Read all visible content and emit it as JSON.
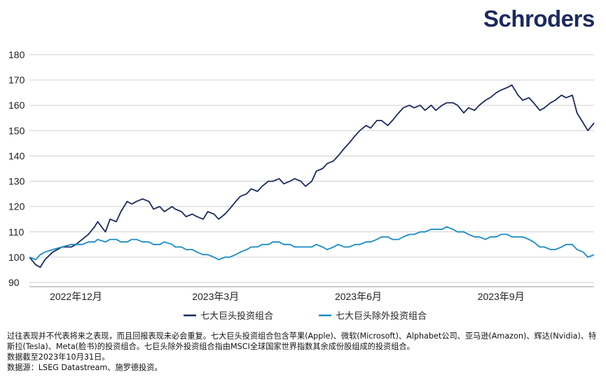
{
  "brand": {
    "logo_text": "Schroders",
    "color": "#1b2a5e"
  },
  "footnotes": {
    "line1": "过往表现并不代表将来之表现，而且回报表现未必会重复。七大巨头投资组合包含苹果(Apple)、微软(Microsoft)、Alphabet公司、亚马逊(Amazon)、辉达(Nvidia)、特斯拉(Tesla)、Meta(脸书)的投资组合。七巨头除外投资组合指由MSCI全球国家世界指数其余成份股组成的投资组合。",
    "line2": "数据截至2023年10月31日。",
    "line3": "数据源：LSEG Datastream、施罗德投资。"
  },
  "chart_data": {
    "type": "line",
    "title": "",
    "xlabel": "",
    "ylabel": "",
    "ylim": [
      90,
      180
    ],
    "yticks": [
      90,
      100,
      110,
      120,
      130,
      140,
      150,
      160,
      170,
      180
    ],
    "x_start": "2022-11-01",
    "x_end": "2023-10-31",
    "xticks": [
      {
        "date": "2022-12-01",
        "label": "2022年12月"
      },
      {
        "date": "2023-03-01",
        "label": "2023年3月"
      },
      {
        "date": "2023-06-01",
        "label": "2023年6月"
      },
      {
        "date": "2023-09-01",
        "label": "2023年9月"
      }
    ],
    "grid": "horizontal",
    "legend_position": "bottom",
    "series": [
      {
        "name": "七大巨头投资组合",
        "color": "#1b2a5e",
        "points": [
          [
            "2022-11-01",
            100
          ],
          [
            "2022-11-05",
            97
          ],
          [
            "2022-11-08",
            96
          ],
          [
            "2022-11-11",
            99
          ],
          [
            "2022-11-16",
            102
          ],
          [
            "2022-11-22",
            104
          ],
          [
            "2022-11-28",
            104
          ],
          [
            "2022-12-01",
            105
          ],
          [
            "2022-12-05",
            107
          ],
          [
            "2022-12-09",
            109
          ],
          [
            "2022-12-13",
            112
          ],
          [
            "2022-12-15",
            114
          ],
          [
            "2022-12-20",
            110
          ],
          [
            "2022-12-23",
            115
          ],
          [
            "2022-12-27",
            114
          ],
          [
            "2022-12-30",
            118
          ],
          [
            "2023-01-03",
            122
          ],
          [
            "2023-01-06",
            121
          ],
          [
            "2023-01-09",
            122
          ],
          [
            "2023-01-13",
            123
          ],
          [
            "2023-01-17",
            122
          ],
          [
            "2023-01-20",
            119
          ],
          [
            "2023-01-24",
            120
          ],
          [
            "2023-01-27",
            118
          ],
          [
            "2023-02-01",
            120
          ],
          [
            "2023-02-03",
            119
          ],
          [
            "2023-02-07",
            118
          ],
          [
            "2023-02-10",
            116
          ],
          [
            "2023-02-14",
            117
          ],
          [
            "2023-02-17",
            116
          ],
          [
            "2023-02-21",
            115
          ],
          [
            "2023-02-24",
            118
          ],
          [
            "2023-02-28",
            117
          ],
          [
            "2023-03-03",
            115
          ],
          [
            "2023-03-07",
            117
          ],
          [
            "2023-03-10",
            119
          ],
          [
            "2023-03-14",
            122
          ],
          [
            "2023-03-17",
            124
          ],
          [
            "2023-03-21",
            125
          ],
          [
            "2023-03-24",
            127
          ],
          [
            "2023-03-28",
            126
          ],
          [
            "2023-03-31",
            128
          ],
          [
            "2023-04-04",
            130
          ],
          [
            "2023-04-07",
            130
          ],
          [
            "2023-04-11",
            131
          ],
          [
            "2023-04-14",
            129
          ],
          [
            "2023-04-18",
            130
          ],
          [
            "2023-04-21",
            131
          ],
          [
            "2023-04-25",
            130
          ],
          [
            "2023-04-28",
            128
          ],
          [
            "2023-05-02",
            130
          ],
          [
            "2023-05-05",
            134
          ],
          [
            "2023-05-09",
            135
          ],
          [
            "2023-05-12",
            137
          ],
          [
            "2023-05-16",
            138
          ],
          [
            "2023-05-19",
            140
          ],
          [
            "2023-05-23",
            143
          ],
          [
            "2023-05-26",
            145
          ],
          [
            "2023-05-30",
            148
          ],
          [
            "2023-06-02",
            150
          ],
          [
            "2023-06-06",
            152
          ],
          [
            "2023-06-09",
            151
          ],
          [
            "2023-06-13",
            154
          ],
          [
            "2023-06-16",
            154
          ],
          [
            "2023-06-20",
            152
          ],
          [
            "2023-06-23",
            154
          ],
          [
            "2023-06-27",
            157
          ],
          [
            "2023-06-30",
            159
          ],
          [
            "2023-07-04",
            160
          ],
          [
            "2023-07-07",
            159
          ],
          [
            "2023-07-11",
            160
          ],
          [
            "2023-07-14",
            158
          ],
          [
            "2023-07-18",
            160
          ],
          [
            "2023-07-21",
            158
          ],
          [
            "2023-07-25",
            160
          ],
          [
            "2023-07-28",
            161
          ],
          [
            "2023-08-01",
            161
          ],
          [
            "2023-08-04",
            160
          ],
          [
            "2023-08-08",
            157
          ],
          [
            "2023-08-11",
            159
          ],
          [
            "2023-08-15",
            158
          ],
          [
            "2023-08-18",
            160
          ],
          [
            "2023-08-22",
            162
          ],
          [
            "2023-08-25",
            163
          ],
          [
            "2023-08-29",
            165
          ],
          [
            "2023-09-01",
            166
          ],
          [
            "2023-09-05",
            167
          ],
          [
            "2023-09-08",
            168
          ],
          [
            "2023-09-12",
            164
          ],
          [
            "2023-09-15",
            162
          ],
          [
            "2023-09-19",
            163
          ],
          [
            "2023-09-22",
            161
          ],
          [
            "2023-09-26",
            158
          ],
          [
            "2023-09-29",
            159
          ],
          [
            "2023-10-03",
            161
          ],
          [
            "2023-10-06",
            162
          ],
          [
            "2023-10-10",
            164
          ],
          [
            "2023-10-13",
            163
          ],
          [
            "2023-10-17",
            164
          ],
          [
            "2023-10-20",
            157
          ],
          [
            "2023-10-24",
            153
          ],
          [
            "2023-10-27",
            150
          ],
          [
            "2023-10-31",
            153
          ]
        ]
      },
      {
        "name": "七大巨头除外投资组合",
        "color": "#1a8ac6",
        "points": [
          [
            "2022-11-01",
            100
          ],
          [
            "2022-11-05",
            99
          ],
          [
            "2022-11-08",
            101
          ],
          [
            "2022-11-11",
            102
          ],
          [
            "2022-11-16",
            103
          ],
          [
            "2022-11-22",
            104
          ],
          [
            "2022-11-28",
            105
          ],
          [
            "2022-12-01",
            105
          ],
          [
            "2022-12-05",
            105
          ],
          [
            "2022-12-09",
            106
          ],
          [
            "2022-12-13",
            106
          ],
          [
            "2022-12-15",
            107
          ],
          [
            "2022-12-20",
            106
          ],
          [
            "2022-12-23",
            107
          ],
          [
            "2022-12-27",
            107
          ],
          [
            "2022-12-30",
            106
          ],
          [
            "2023-01-03",
            106
          ],
          [
            "2023-01-06",
            107
          ],
          [
            "2023-01-09",
            107
          ],
          [
            "2023-01-13",
            106
          ],
          [
            "2023-01-17",
            106
          ],
          [
            "2023-01-20",
            105
          ],
          [
            "2023-01-24",
            105
          ],
          [
            "2023-01-27",
            106
          ],
          [
            "2023-02-01",
            105
          ],
          [
            "2023-02-03",
            104
          ],
          [
            "2023-02-07",
            104
          ],
          [
            "2023-02-10",
            103
          ],
          [
            "2023-02-14",
            103
          ],
          [
            "2023-02-17",
            102
          ],
          [
            "2023-02-21",
            101
          ],
          [
            "2023-02-24",
            101
          ],
          [
            "2023-02-28",
            100
          ],
          [
            "2023-03-03",
            99
          ],
          [
            "2023-03-07",
            100
          ],
          [
            "2023-03-10",
            100
          ],
          [
            "2023-03-14",
            101
          ],
          [
            "2023-03-17",
            102
          ],
          [
            "2023-03-21",
            103
          ],
          [
            "2023-03-24",
            104
          ],
          [
            "2023-03-28",
            104
          ],
          [
            "2023-03-31",
            105
          ],
          [
            "2023-04-04",
            105
          ],
          [
            "2023-04-07",
            106
          ],
          [
            "2023-04-11",
            106
          ],
          [
            "2023-04-14",
            105
          ],
          [
            "2023-04-18",
            105
          ],
          [
            "2023-04-21",
            104
          ],
          [
            "2023-04-25",
            104
          ],
          [
            "2023-04-28",
            104
          ],
          [
            "2023-05-02",
            104
          ],
          [
            "2023-05-05",
            105
          ],
          [
            "2023-05-09",
            104
          ],
          [
            "2023-05-12",
            103
          ],
          [
            "2023-05-16",
            104
          ],
          [
            "2023-05-19",
            105
          ],
          [
            "2023-05-23",
            104
          ],
          [
            "2023-05-26",
            104
          ],
          [
            "2023-05-30",
            105
          ],
          [
            "2023-06-02",
            105
          ],
          [
            "2023-06-06",
            106
          ],
          [
            "2023-06-09",
            106
          ],
          [
            "2023-06-13",
            107
          ],
          [
            "2023-06-16",
            108
          ],
          [
            "2023-06-20",
            108
          ],
          [
            "2023-06-23",
            107
          ],
          [
            "2023-06-27",
            107
          ],
          [
            "2023-06-30",
            108
          ],
          [
            "2023-07-04",
            109
          ],
          [
            "2023-07-07",
            109
          ],
          [
            "2023-07-11",
            110
          ],
          [
            "2023-07-14",
            110
          ],
          [
            "2023-07-18",
            111
          ],
          [
            "2023-07-21",
            111
          ],
          [
            "2023-07-25",
            111
          ],
          [
            "2023-07-28",
            112
          ],
          [
            "2023-08-01",
            111
          ],
          [
            "2023-08-04",
            110
          ],
          [
            "2023-08-08",
            110
          ],
          [
            "2023-08-11",
            109
          ],
          [
            "2023-08-15",
            108
          ],
          [
            "2023-08-18",
            108
          ],
          [
            "2023-08-22",
            107
          ],
          [
            "2023-08-25",
            108
          ],
          [
            "2023-08-29",
            108
          ],
          [
            "2023-09-01",
            109
          ],
          [
            "2023-09-05",
            109
          ],
          [
            "2023-09-08",
            108
          ],
          [
            "2023-09-12",
            108
          ],
          [
            "2023-09-15",
            108
          ],
          [
            "2023-09-19",
            107
          ],
          [
            "2023-09-22",
            106
          ],
          [
            "2023-09-26",
            104
          ],
          [
            "2023-09-29",
            104
          ],
          [
            "2023-10-03",
            103
          ],
          [
            "2023-10-06",
            103
          ],
          [
            "2023-10-10",
            104
          ],
          [
            "2023-10-13",
            105
          ],
          [
            "2023-10-17",
            105
          ],
          [
            "2023-10-20",
            103
          ],
          [
            "2023-10-24",
            102
          ],
          [
            "2023-10-27",
            100
          ],
          [
            "2023-10-31",
            101
          ]
        ]
      }
    ]
  }
}
